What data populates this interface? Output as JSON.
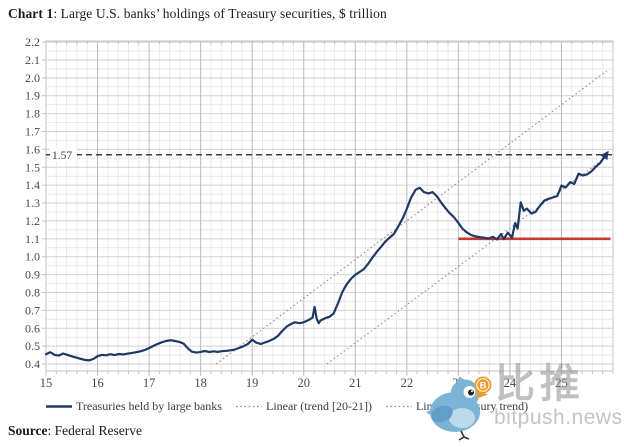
{
  "title": {
    "bold": "Chart 1",
    "rest": ": Large U.S. banks’ holdings of Treasury securities, $ trillion"
  },
  "source": {
    "bold": "Source",
    "rest": ": Federal Reserve"
  },
  "watermark": {
    "cn": "比推",
    "site": "bitpush.news",
    "bird_color": "#7cb4d8",
    "bird_wing_color": "#639ec9",
    "bird_light_color": "#bcdaec",
    "coin_color": "#ee9b2c",
    "coin_symbol": "B"
  },
  "chart_data": {
    "type": "line",
    "title": "Large U.S. banks’ holdings of Treasury securities, $ trillion",
    "xlabel": "",
    "ylabel": "$ trillion",
    "x_range": [
      15,
      26
    ],
    "y_range": [
      0.361,
      2.206
    ],
    "x_ticks": [
      15,
      16,
      17,
      18,
      19,
      20,
      21,
      22,
      23,
      24,
      25
    ],
    "x_minor_step": 0.2,
    "y_tick_min": 0.4,
    "y_tick_max": 2.2,
    "y_tick_step": 0.1,
    "y_minor_step": 0.05,
    "grid": {
      "minor": "#e9e9ec",
      "major": "#d2d2d7",
      "year": "#b9b9bf",
      "frame": "#c3c3c8"
    },
    "axis_text_color": "#48474e",
    "legend_position": "bottom",
    "end_arrow": true,
    "series": [
      {
        "name": "Treasuries held by large banks",
        "color": "#1f3864",
        "style": "solid",
        "points": [
          [
            15,
            0.455
          ],
          [
            15.08,
            0.466
          ],
          [
            15.17,
            0.451
          ],
          [
            15.25,
            0.447
          ],
          [
            15.33,
            0.459
          ],
          [
            15.42,
            0.451
          ],
          [
            15.5,
            0.443
          ],
          [
            15.58,
            0.437
          ],
          [
            15.67,
            0.429
          ],
          [
            15.75,
            0.423
          ],
          [
            15.83,
            0.42
          ],
          [
            15.92,
            0.428
          ],
          [
            16,
            0.444
          ],
          [
            16.08,
            0.451
          ],
          [
            16.17,
            0.449
          ],
          [
            16.25,
            0.455
          ],
          [
            16.33,
            0.45
          ],
          [
            16.42,
            0.456
          ],
          [
            16.5,
            0.453
          ],
          [
            16.58,
            0.458
          ],
          [
            16.67,
            0.462
          ],
          [
            16.75,
            0.466
          ],
          [
            16.83,
            0.471
          ],
          [
            16.92,
            0.479
          ],
          [
            17,
            0.489
          ],
          [
            17.08,
            0.501
          ],
          [
            17.17,
            0.513
          ],
          [
            17.25,
            0.522
          ],
          [
            17.33,
            0.529
          ],
          [
            17.42,
            0.533
          ],
          [
            17.5,
            0.529
          ],
          [
            17.58,
            0.524
          ],
          [
            17.67,
            0.514
          ],
          [
            17.75,
            0.488
          ],
          [
            17.83,
            0.469
          ],
          [
            17.92,
            0.464
          ],
          [
            18,
            0.468
          ],
          [
            18.08,
            0.473
          ],
          [
            18.17,
            0.467
          ],
          [
            18.25,
            0.471
          ],
          [
            18.33,
            0.468
          ],
          [
            18.42,
            0.472
          ],
          [
            18.5,
            0.474
          ],
          [
            18.58,
            0.477
          ],
          [
            18.67,
            0.482
          ],
          [
            18.75,
            0.49
          ],
          [
            18.83,
            0.499
          ],
          [
            18.92,
            0.513
          ],
          [
            19,
            0.536
          ],
          [
            19.08,
            0.519
          ],
          [
            19.17,
            0.512
          ],
          [
            19.25,
            0.521
          ],
          [
            19.33,
            0.529
          ],
          [
            19.42,
            0.541
          ],
          [
            19.5,
            0.557
          ],
          [
            19.58,
            0.584
          ],
          [
            19.67,
            0.609
          ],
          [
            19.75,
            0.623
          ],
          [
            19.83,
            0.633
          ],
          [
            19.92,
            0.628
          ],
          [
            20,
            0.633
          ],
          [
            20.08,
            0.644
          ],
          [
            20.17,
            0.659
          ],
          [
            20.21,
            0.719
          ],
          [
            20.25,
            0.655
          ],
          [
            20.29,
            0.628
          ],
          [
            20.33,
            0.644
          ],
          [
            20.42,
            0.657
          ],
          [
            20.5,
            0.664
          ],
          [
            20.58,
            0.682
          ],
          [
            20.67,
            0.744
          ],
          [
            20.75,
            0.803
          ],
          [
            20.83,
            0.844
          ],
          [
            20.92,
            0.877
          ],
          [
            21,
            0.899
          ],
          [
            21.08,
            0.914
          ],
          [
            21.17,
            0.931
          ],
          [
            21.25,
            0.961
          ],
          [
            21.33,
            0.994
          ],
          [
            21.42,
            1.028
          ],
          [
            21.5,
            1.054
          ],
          [
            21.58,
            1.084
          ],
          [
            21.67,
            1.108
          ],
          [
            21.75,
            1.127
          ],
          [
            21.83,
            1.168
          ],
          [
            21.92,
            1.214
          ],
          [
            22,
            1.268
          ],
          [
            22.08,
            1.328
          ],
          [
            22.17,
            1.374
          ],
          [
            22.25,
            1.386
          ],
          [
            22.33,
            1.362
          ],
          [
            22.42,
            1.354
          ],
          [
            22.5,
            1.361
          ],
          [
            22.58,
            1.339
          ],
          [
            22.67,
            1.301
          ],
          [
            22.75,
            1.271
          ],
          [
            22.83,
            1.244
          ],
          [
            22.92,
            1.219
          ],
          [
            23,
            1.189
          ],
          [
            23.08,
            1.156
          ],
          [
            23.17,
            1.135
          ],
          [
            23.25,
            1.121
          ],
          [
            23.33,
            1.114
          ],
          [
            23.42,
            1.109
          ],
          [
            23.5,
            1.106
          ],
          [
            23.58,
            1.102
          ],
          [
            23.67,
            1.111
          ],
          [
            23.75,
            1.097
          ],
          [
            23.83,
            1.127
          ],
          [
            23.88,
            1.099
          ],
          [
            23.96,
            1.134
          ],
          [
            24.04,
            1.107
          ],
          [
            24.1,
            1.188
          ],
          [
            24.15,
            1.157
          ],
          [
            24.21,
            1.304
          ],
          [
            24.27,
            1.257
          ],
          [
            24.33,
            1.269
          ],
          [
            24.42,
            1.241
          ],
          [
            24.5,
            1.251
          ],
          [
            24.58,
            1.284
          ],
          [
            24.67,
            1.314
          ],
          [
            24.75,
            1.324
          ],
          [
            24.83,
            1.331
          ],
          [
            24.92,
            1.339
          ],
          [
            25,
            1.398
          ],
          [
            25.08,
            1.387
          ],
          [
            25.17,
            1.417
          ],
          [
            25.25,
            1.407
          ],
          [
            25.33,
            1.464
          ],
          [
            25.42,
            1.454
          ],
          [
            25.5,
            1.461
          ],
          [
            25.58,
            1.477
          ],
          [
            25.67,
            1.504
          ],
          [
            25.75,
            1.524
          ],
          [
            25.85,
            1.565
          ]
        ]
      },
      {
        "name": "Linear (trend [20-21])",
        "color": "#8f8f8f",
        "style": "dotted",
        "points": [
          [
            18.3,
            0.4
          ],
          [
            25.88,
            2.04
          ]
        ]
      },
      {
        "name": "Linear (Treasury trend)",
        "color": "#9a8e86",
        "style": "dotted",
        "points": [
          [
            20.45,
            0.4
          ],
          [
            25.88,
            1.56
          ]
        ]
      }
    ],
    "annotations": {
      "target_level": {
        "value": 1.57,
        "label": "1.57",
        "color": "#3d3d3d",
        "style": "dashed"
      },
      "support_level": {
        "value": 1.1,
        "x_start": 23.0,
        "x_end": 25.95,
        "color": "#c53b30",
        "style": "solid"
      }
    }
  }
}
